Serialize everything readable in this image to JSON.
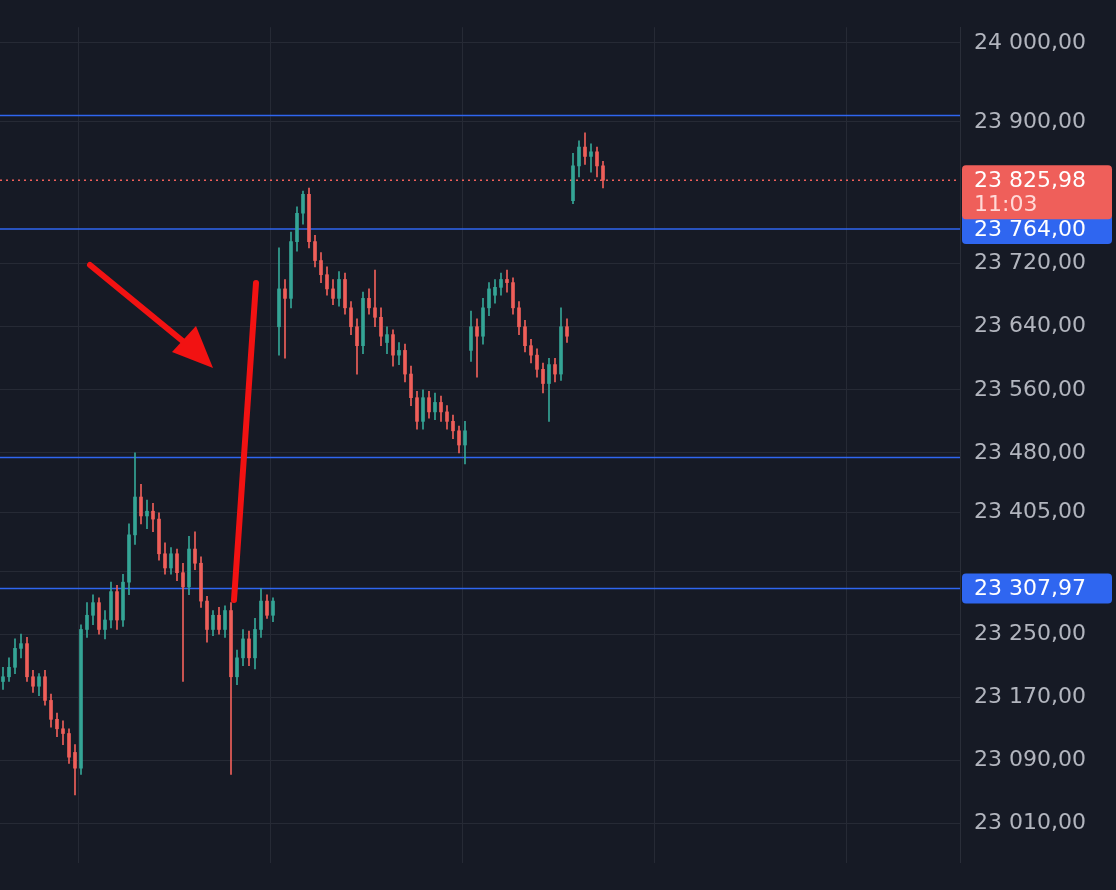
{
  "chart_data": {
    "type": "candlestick",
    "categories": [
      null,
      null,
      null,
      null,
      null,
      null,
      null,
      null,
      null,
      null,
      null,
      null,
      null,
      null,
      null,
      null,
      null,
      null,
      null,
      null,
      null,
      null,
      null,
      null,
      null,
      null,
      null,
      null,
      null,
      null,
      null,
      null,
      null,
      null,
      null,
      null,
      null,
      null,
      null,
      null,
      null,
      null,
      null,
      null,
      null,
      null,
      null,
      null,
      null,
      null,
      null,
      null,
      null,
      null,
      null,
      null,
      null,
      null,
      null,
      null,
      null,
      null,
      null,
      null,
      null,
      null,
      null,
      null,
      null,
      null,
      null,
      null,
      null,
      null,
      null,
      null,
      null,
      null,
      null,
      null,
      null,
      null,
      null,
      null,
      null,
      null,
      null,
      null,
      null,
      null,
      null,
      null,
      null,
      null,
      null,
      null,
      null,
      null,
      null,
      null,
      null,
      null,
      null,
      null,
      null,
      null,
      null,
      null,
      null,
      null,
      null,
      null,
      null,
      null,
      null,
      null,
      null,
      null,
      null,
      null,
      null,
      null,
      null,
      null,
      null,
      null,
      null,
      null,
      null,
      null,
      null,
      null,
      null,
      null,
      null,
      null,
      null,
      null,
      null,
      null,
      null,
      null,
      null,
      null,
      null,
      null,
      null,
      null,
      null,
      null,
      null,
      null,
      null,
      null,
      null,
      null,
      null,
      null,
      null,
      null
    ],
    "ohlc": [
      [
        23190,
        23208,
        23180,
        23196
      ],
      [
        23196,
        23220,
        23190,
        23208
      ],
      [
        23208,
        23244,
        23200,
        23232
      ],
      [
        23232,
        23250,
        23220,
        23238
      ],
      [
        23238,
        23246,
        23190,
        23196
      ],
      [
        23196,
        23204,
        23176,
        23184
      ],
      [
        23184,
        23200,
        23172,
        23196
      ],
      [
        23196,
        23204,
        23160,
        23166
      ],
      [
        23166,
        23174,
        23132,
        23142
      ],
      [
        23142,
        23150,
        23120,
        23130
      ],
      [
        23130,
        23140,
        23110,
        23124
      ],
      [
        23124,
        23130,
        23086,
        23094
      ],
      [
        23100,
        23110,
        23046,
        23080
      ],
      [
        23080,
        23262,
        23072,
        23256
      ],
      [
        23256,
        23290,
        23246,
        23274
      ],
      [
        23274,
        23300,
        23262,
        23290
      ],
      [
        23290,
        23296,
        23250,
        23256
      ],
      [
        23256,
        23280,
        23244,
        23268
      ],
      [
        23268,
        23316,
        23258,
        23304
      ],
      [
        23304,
        23312,
        23256,
        23268
      ],
      [
        23268,
        23326,
        23260,
        23316
      ],
      [
        23316,
        23390,
        23300,
        23376
      ],
      [
        23376,
        23480,
        23364,
        23424
      ],
      [
        23424,
        23440,
        23390,
        23400
      ],
      [
        23400,
        23420,
        23384,
        23406
      ],
      [
        23406,
        23416,
        23380,
        23396
      ],
      [
        23396,
        23404,
        23344,
        23352
      ],
      [
        23352,
        23366,
        23326,
        23334
      ],
      [
        23334,
        23360,
        23326,
        23352
      ],
      [
        23352,
        23358,
        23318,
        23328
      ],
      [
        23328,
        23340,
        23190,
        23310
      ],
      [
        23310,
        23374,
        23300,
        23358
      ],
      [
        23358,
        23380,
        23332,
        23340
      ],
      [
        23340,
        23348,
        23284,
        23292
      ],
      [
        23292,
        23298,
        23240,
        23256
      ],
      [
        23256,
        23280,
        23248,
        23274
      ],
      [
        23274,
        23284,
        23250,
        23256
      ],
      [
        23256,
        23286,
        23246,
        23280
      ],
      [
        23280,
        23290,
        23072,
        23196
      ],
      [
        23196,
        23230,
        23186,
        23220
      ],
      [
        23220,
        23256,
        23210,
        23244
      ],
      [
        23244,
        23254,
        23210,
        23220
      ],
      [
        23220,
        23270,
        23206,
        23256
      ],
      [
        23256,
        23308,
        23246,
        23292
      ],
      [
        23292,
        23300,
        23270,
        23274
      ],
      [
        23274,
        23296,
        23266,
        23292
      ],
      [
        23640,
        23740,
        23604,
        23688
      ],
      [
        23688,
        23700,
        23600,
        23676
      ],
      [
        23676,
        23760,
        23664,
        23748
      ],
      [
        23748,
        23792,
        23736,
        23784
      ],
      [
        23784,
        23812,
        23770,
        23808
      ],
      [
        23808,
        23816,
        23740,
        23748
      ],
      [
        23748,
        23756,
        23716,
        23724
      ],
      [
        23724,
        23734,
        23696,
        23706
      ],
      [
        23706,
        23716,
        23680,
        23688
      ],
      [
        23688,
        23700,
        23668,
        23676
      ],
      [
        23676,
        23710,
        23666,
        23700
      ],
      [
        23700,
        23708,
        23656,
        23664
      ],
      [
        23664,
        23672,
        23630,
        23640
      ],
      [
        23640,
        23650,
        23580,
        23616
      ],
      [
        23616,
        23684,
        23606,
        23676
      ],
      [
        23676,
        23688,
        23656,
        23664
      ],
      [
        23664,
        23712,
        23640,
        23652
      ],
      [
        23652,
        23664,
        23616,
        23628
      ],
      [
        23620,
        23640,
        23606,
        23630
      ],
      [
        23630,
        23636,
        23590,
        23604
      ],
      [
        23604,
        23620,
        23592,
        23610
      ],
      [
        23610,
        23618,
        23570,
        23580
      ],
      [
        23580,
        23590,
        23540,
        23550
      ],
      [
        23550,
        23558,
        23510,
        23520
      ],
      [
        23520,
        23560,
        23510,
        23550
      ],
      [
        23550,
        23558,
        23524,
        23532
      ],
      [
        23532,
        23556,
        23522,
        23544
      ],
      [
        23544,
        23552,
        23520,
        23532
      ],
      [
        23532,
        23540,
        23510,
        23520
      ],
      [
        23520,
        23528,
        23498,
        23508
      ],
      [
        23508,
        23514,
        23480,
        23490
      ],
      [
        23490,
        23520,
        23466,
        23508
      ],
      [
        23610,
        23660,
        23596,
        23640
      ],
      [
        23640,
        23650,
        23576,
        23628
      ],
      [
        23628,
        23676,
        23618,
        23664
      ],
      [
        23664,
        23696,
        23654,
        23688
      ],
      [
        23680,
        23700,
        23670,
        23690
      ],
      [
        23690,
        23708,
        23680,
        23700
      ],
      [
        23700,
        23712,
        23684,
        23696
      ],
      [
        23696,
        23702,
        23656,
        23664
      ],
      [
        23664,
        23672,
        23630,
        23640
      ],
      [
        23640,
        23648,
        23608,
        23616
      ],
      [
        23616,
        23624,
        23594,
        23604
      ],
      [
        23604,
        23612,
        23576,
        23586
      ],
      [
        23586,
        23594,
        23556,
        23568
      ],
      [
        23568,
        23600,
        23520,
        23592
      ],
      [
        23592,
        23600,
        23570,
        23580
      ],
      [
        23580,
        23664,
        23572,
        23640
      ],
      [
        23640,
        23650,
        23620,
        23628
      ],
      [
        23800,
        23860,
        23796,
        23844
      ],
      [
        23844,
        23876,
        23830,
        23868
      ],
      [
        23868,
        23886,
        23846,
        23856
      ],
      [
        23856,
        23872,
        23836,
        23862
      ],
      [
        23862,
        23868,
        23830,
        23844
      ],
      [
        23844,
        23850,
        23816,
        23826
      ],
      null,
      null,
      null,
      null,
      null,
      null,
      null,
      null,
      null,
      null,
      null,
      null,
      null,
      null,
      null,
      null,
      null,
      null,
      null,
      null,
      null,
      null,
      null,
      null,
      null,
      null,
      null,
      null,
      null,
      null,
      null,
      null,
      null,
      null,
      null,
      null,
      null,
      null,
      null,
      null,
      null,
      null,
      null,
      null,
      null,
      null,
      null,
      null,
      null,
      null,
      null,
      null,
      null,
      null,
      null,
      null,
      null,
      null,
      null
    ],
    "colors": [
      "#35a596",
      "#35a596",
      "#35a596",
      "#35a596",
      "#ef5f5a",
      "#ef5f5a",
      "#35a596",
      "#ef5f5a",
      "#ef5f5a",
      "#ef5f5a",
      "#ef5f5a",
      "#ef5f5a",
      "#ef5f5a",
      "#35a596",
      "#35a596",
      "#35a596",
      "#ef5f5a",
      "#35a596",
      "#35a596",
      "#ef5f5a",
      "#35a596",
      "#35a596",
      "#35a596",
      "#ef5f5a",
      "#35a596",
      "#ef5f5a",
      "#ef5f5a",
      "#ef5f5a",
      "#35a596",
      "#ef5f5a",
      "#ef5f5a",
      "#35a596",
      "#ef5f5a",
      "#ef5f5a",
      "#ef5f5a",
      "#35a596",
      "#ef5f5a",
      "#35a596",
      "#ef5f5a",
      "#35a596",
      "#35a596",
      "#ef5f5a",
      "#35a596",
      "#35a596",
      "#ef5f5a",
      "#35a596",
      "#35a596",
      "#ef5f5a",
      "#35a596",
      "#35a596",
      "#35a596",
      "#ef5f5a",
      "#ef5f5a",
      "#ef5f5a",
      "#ef5f5a",
      "#ef5f5a",
      "#35a596",
      "#ef5f5a",
      "#ef5f5a",
      "#ef5f5a",
      "#35a596",
      "#ef5f5a",
      "#ef5f5a",
      "#ef5f5a",
      "#35a596",
      "#ef5f5a",
      "#35a596",
      "#ef5f5a",
      "#ef5f5a",
      "#ef5f5a",
      "#35a596",
      "#ef5f5a",
      "#35a596",
      "#ef5f5a",
      "#ef5f5a",
      "#ef5f5a",
      "#ef5f5a",
      "#35a596",
      "#35a596",
      "#ef5f5a",
      "#35a596",
      "#35a596",
      "#35a596",
      "#35a596",
      "#ef5f5a",
      "#ef5f5a",
      "#ef5f5a",
      "#ef5f5a",
      "#ef5f5a",
      "#ef5f5a",
      "#ef5f5a",
      "#35a596",
      "#ef5f5a",
      "#35a596",
      "#ef5f5a",
      "#35a596",
      "#35a596",
      "#ef5f5a",
      "#35a596",
      "#ef5f5a",
      "#ef5f5a",
      null,
      null,
      null,
      null,
      null,
      null,
      null,
      null,
      null,
      null,
      null,
      null,
      null,
      null,
      null,
      null,
      null,
      null,
      null,
      null,
      null,
      null,
      null,
      null,
      null,
      null,
      null,
      null,
      null,
      null,
      null,
      null,
      null,
      null,
      null,
      null,
      null,
      null,
      null,
      null,
      null,
      null,
      null,
      null,
      null,
      null,
      null,
      null,
      null,
      null,
      null,
      null,
      null,
      null,
      null,
      null,
      null,
      null,
      null
    ],
    "ylim": [
      22960,
      24020
    ],
    "yticks": [
      {
        "value": 24000,
        "label": "24 000,00"
      },
      {
        "value": 23900,
        "label": "23 900,00"
      },
      {
        "value": 23720,
        "label": "23 720,00"
      },
      {
        "value": 23640,
        "label": "23 640,00"
      },
      {
        "value": 23560,
        "label": "23 560,00"
      },
      {
        "value": 23480,
        "label": "23 480,00"
      },
      {
        "value": 23405,
        "label": "23 405,00"
      },
      {
        "value": 23330,
        "label": null
      },
      {
        "value": 23250,
        "label": "23 250,00"
      },
      {
        "value": 23170,
        "label": "23 170,00"
      },
      {
        "value": 23090,
        "label": "23 090,00"
      },
      {
        "value": 23010,
        "label": "23 010,00"
      }
    ],
    "ref_lines": [
      {
        "axis": "y",
        "value": 23908,
        "color": "#2f66f0",
        "line_style": "solid"
      },
      {
        "axis": "y",
        "value": 23764,
        "label": "23 764,00",
        "color": "#2f66f0",
        "line_style": "solid"
      },
      {
        "axis": "y",
        "value": 23474,
        "color": "#2f66f0",
        "line_style": "solid"
      },
      {
        "axis": "y",
        "value": 23307.97,
        "label": "23 307,97",
        "color": "#2f66f0",
        "line_style": "solid"
      },
      {
        "axis": "y",
        "value": 23825.98,
        "label": "23 825,98",
        "color": "#ef5f5a",
        "line_style": "dotted"
      }
    ],
    "annotations": [
      "11:03"
    ],
    "grid": true,
    "legend": false
  }
}
